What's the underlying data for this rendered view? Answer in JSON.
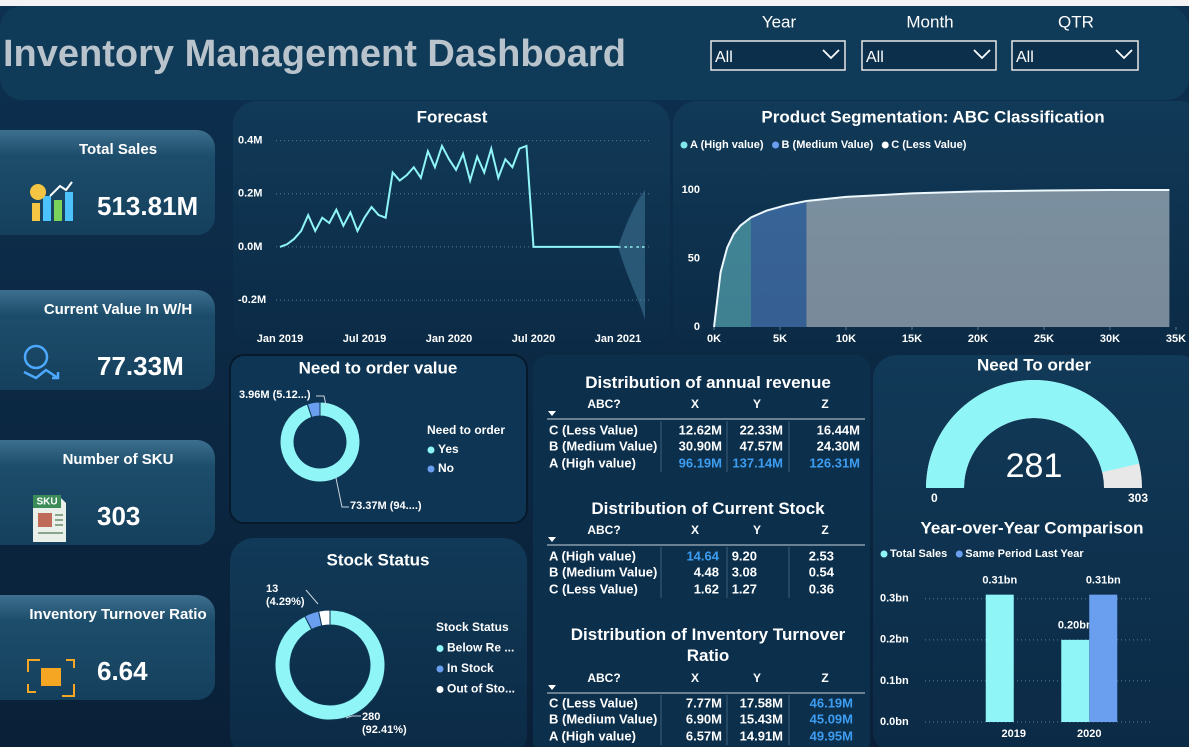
{
  "header": {
    "title": "Inventory Management Dashboard"
  },
  "filters": [
    {
      "label": "Year",
      "value": "All"
    },
    {
      "label": "Month",
      "value": "All"
    },
    {
      "label": "QTR",
      "value": "All"
    }
  ],
  "kpis": [
    {
      "label": "Total Sales",
      "value": "513.81M"
    },
    {
      "label": "Current Value In W/H",
      "value": "77.33M"
    },
    {
      "label": "Number of SKU",
      "value": "303",
      "icon_text": "SKU"
    },
    {
      "label": "Inventory Turnover Ratio",
      "value": "6.64"
    }
  ],
  "highlight_color": "#3d9df0",
  "tables": [
    {
      "title": "Distribution of annual revenue",
      "columns": [
        "ABC?",
        "X",
        "Y",
        "Z"
      ],
      "rows": [
        [
          "C (Less Value)",
          "12.62M",
          "22.33M",
          "16.44M"
        ],
        [
          "B (Medium Value)",
          "30.90M",
          "47.57M",
          "24.30M"
        ],
        [
          "A (High value)",
          "96.19M",
          "137.14M",
          "126.31M"
        ]
      ],
      "highlight": [
        [
          2,
          1
        ],
        [
          2,
          2
        ],
        [
          2,
          3
        ]
      ]
    },
    {
      "title": "Distribution of Current Stock",
      "columns": [
        "ABC?",
        "X",
        "Y",
        "Z"
      ],
      "rows": [
        [
          "A (High value)",
          "14.64",
          "9.20",
          "2.53"
        ],
        [
          "B (Medium Value)",
          "4.48",
          "3.08",
          "0.54"
        ],
        [
          "C (Less Value)",
          "1.62",
          "1.27",
          "0.36"
        ]
      ],
      "highlight": [
        [
          0,
          1
        ]
      ]
    },
    {
      "title": "Distribution of Inventory Turnover Ratio",
      "columns": [
        "ABC?",
        "X",
        "Y",
        "Z"
      ],
      "rows": [
        [
          "C (Less Value)",
          "7.77M",
          "17.58M",
          "46.19M"
        ],
        [
          "B (Medium Value)",
          "6.90M",
          "15.43M",
          "45.09M"
        ],
        [
          "A (High value)",
          "6.57M",
          "14.91M",
          "49.95M"
        ]
      ],
      "highlight": [
        [
          0,
          3
        ],
        [
          1,
          3
        ],
        [
          2,
          3
        ]
      ]
    }
  ],
  "chart_data": [
    {
      "type": "line",
      "title": "Forecast",
      "color": "#8ff5f7",
      "categories": [
        "Jan 2019",
        null,
        null,
        null,
        null,
        null,
        null,
        null,
        null,
        null,
        null,
        null,
        "Jul 2019",
        null,
        null,
        null,
        null,
        null,
        null,
        null,
        null,
        null,
        null,
        null,
        "Jan 2020",
        null,
        null,
        null,
        null,
        null,
        null,
        null,
        null,
        null,
        null,
        null,
        "Jul 2020",
        null,
        null,
        null,
        null,
        null,
        null,
        null,
        null,
        null,
        null,
        null,
        "Jan 2021"
      ],
      "values": [
        0,
        10000,
        30000,
        60000,
        120000,
        60000,
        110000,
        90000,
        140000,
        80000,
        130000,
        60000,
        110000,
        150000,
        120000,
        110000,
        280000,
        250000,
        270000,
        300000,
        260000,
        360000,
        300000,
        380000,
        330000,
        290000,
        350000,
        250000,
        340000,
        280000,
        370000,
        260000,
        330000,
        300000,
        370000,
        380000,
        0,
        0,
        0,
        0,
        0,
        0,
        0,
        0,
        0,
        0,
        0,
        0,
        0
      ],
      "ylim": [
        -290000,
        440000
      ],
      "yticks": [
        {
          "value": -200000,
          "label": "-0.2M"
        },
        {
          "value": 0,
          "label": "0.0M"
        },
        {
          "value": 200000,
          "label": "0.2M"
        },
        {
          "value": 400000,
          "label": "0.4M"
        }
      ],
      "grid": true
    },
    {
      "type": "area",
      "title": "Product Segmentation: ABC Classification",
      "legend": "top-left",
      "line_color": "#eef9ff",
      "x": [
        0,
        500,
        1000,
        1500,
        2000,
        2800,
        4000,
        5500,
        7000,
        10000,
        15000,
        20000,
        25000,
        30000,
        34500
      ],
      "series": [
        {
          "name": "A (High value)",
          "color": "#7fe8ea",
          "values": [
            0,
            40,
            58,
            68,
            74,
            80,
            null,
            null,
            null,
            null,
            null,
            null,
            null,
            null,
            null
          ]
        },
        {
          "name": "B (Medium Value)",
          "color": "#6a9ff0",
          "values": [
            null,
            null,
            null,
            null,
            null,
            80,
            85,
            89,
            92,
            null,
            null,
            null,
            null,
            null,
            null
          ]
        },
        {
          "name": "C (Less Value)",
          "color": "#ffffff",
          "values": [
            null,
            null,
            null,
            null,
            null,
            null,
            null,
            null,
            92,
            95,
            97.5,
            99,
            99.6,
            100,
            100
          ]
        }
      ],
      "xlim": [
        0,
        35000
      ],
      "xticks": [
        {
          "value": 0,
          "label": "0K"
        },
        {
          "value": 5000,
          "label": "5K"
        },
        {
          "value": 10000,
          "label": "10K"
        },
        {
          "value": 15000,
          "label": "15K"
        },
        {
          "value": 20000,
          "label": "20K"
        },
        {
          "value": 25000,
          "label": "25K"
        },
        {
          "value": 30000,
          "label": "30K"
        },
        {
          "value": 35000,
          "label": "35K"
        }
      ],
      "ylim": [
        0,
        120
      ],
      "yticks": [
        0,
        50,
        100
      ]
    },
    {
      "type": "donut",
      "title": "Need to order value",
      "legend_title": "Need to order",
      "categories": [
        "Yes",
        "No"
      ],
      "values": [
        73370000,
        3960000
      ],
      "value_labels": [
        "73.37M (94....)",
        "3.96M (5.12...)"
      ],
      "colors": [
        "#8ff5f7",
        "#6a9ff0"
      ]
    },
    {
      "type": "donut",
      "title": "Stock Status",
      "legend_title": "Stock Status",
      "categories": [
        "Below Re ...",
        "In Stock",
        "Out of Sto..."
      ],
      "values": [
        280,
        13,
        10
      ],
      "value_labels": [
        "280\n(92.41%)",
        "13\n(4.29%)",
        null
      ],
      "colors": [
        "#8ff5f7",
        "#6a9ff0",
        "#ffffff"
      ]
    },
    {
      "type": "gauge",
      "title": "Need To order",
      "value": 281,
      "min": 0,
      "max": 303,
      "color": "#8ff5f7",
      "track_color": "#e8e8e8"
    },
    {
      "type": "bar",
      "title": "Year-over-Year Comparison",
      "legend": "top-left",
      "grid": true,
      "categories": [
        "2019",
        "2020"
      ],
      "series": [
        {
          "name": "Total Sales",
          "color": "#8ff5f7",
          "values": [
            310000000,
            200000000
          ],
          "value_labels": [
            "0.31bn",
            "0.20bn"
          ]
        },
        {
          "name": "Same Period Last Year",
          "color": "#6a9ff0",
          "values": [
            null,
            310000000
          ],
          "value_labels": [
            null,
            "0.31bn"
          ]
        }
      ],
      "ylim": [
        0,
        370000000
      ],
      "yticks": [
        {
          "value": 0,
          "label": "0.0bn"
        },
        {
          "value": 100000000,
          "label": "0.1bn"
        },
        {
          "value": 200000000,
          "label": "0.2bn"
        },
        {
          "value": 300000000,
          "label": "0.3bn"
        }
      ]
    }
  ]
}
